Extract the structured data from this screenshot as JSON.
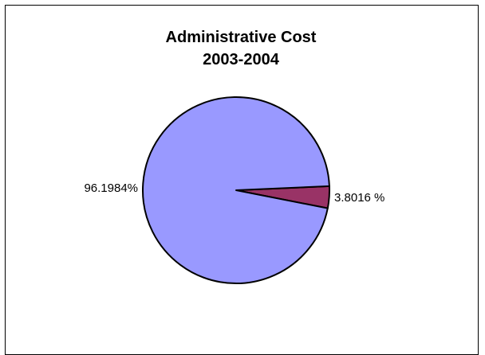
{
  "chart_data": {
    "type": "pie",
    "title": "Administrative Cost",
    "subtitle": "2003-2004",
    "legend": "none",
    "slices": [
      {
        "value": 3.8016,
        "label": "3.8016 %",
        "color": "#993366"
      },
      {
        "value": 96.1984,
        "label": "96.1984%",
        "color": "#9999ff"
      }
    ]
  }
}
